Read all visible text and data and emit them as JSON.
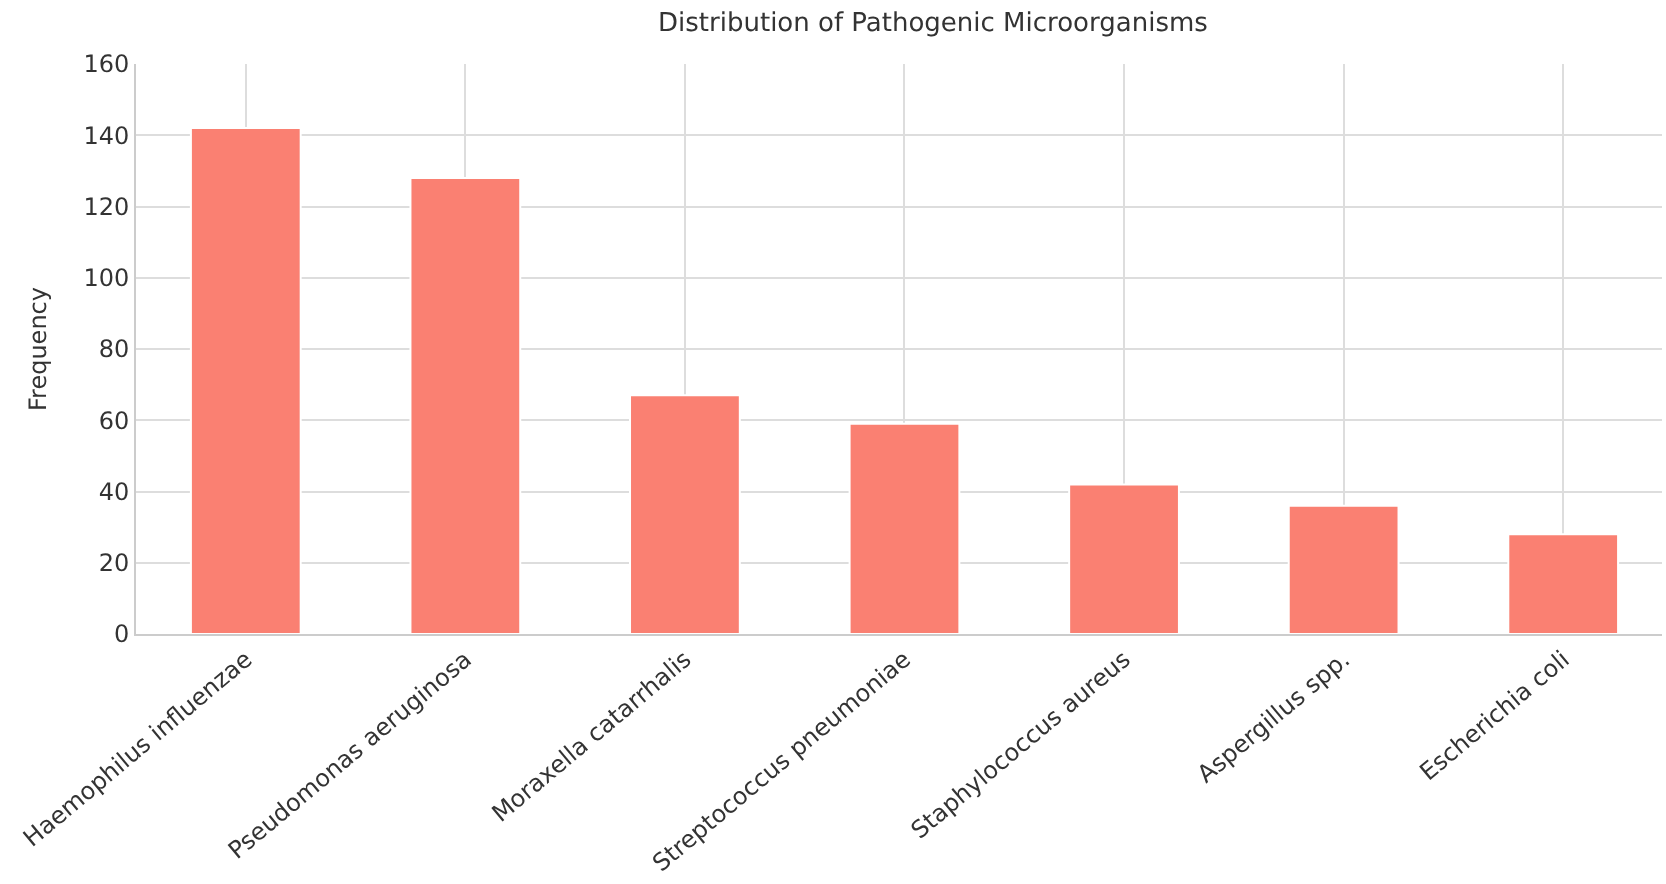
{
  "chart_data": {
    "type": "bar",
    "title": "Distribution of Pathogenic Microorganisms",
    "ylabel": "Frequency",
    "categories": [
      "Haemophilus influenzae",
      "Pseudomonas aeruginosa",
      "Moraxella catarrhalis",
      "Streptococcus pneumoniae",
      "Staphylococcus aureus",
      "Aspergillus spp.",
      "Escherichia coli"
    ],
    "values": [
      142,
      128,
      67,
      59,
      42,
      36,
      28
    ],
    "color": "#fa8072",
    "ylim": [
      0,
      160
    ],
    "yticks": [
      0,
      20,
      40,
      60,
      80,
      100,
      120,
      140,
      160
    ],
    "grid": true
  }
}
